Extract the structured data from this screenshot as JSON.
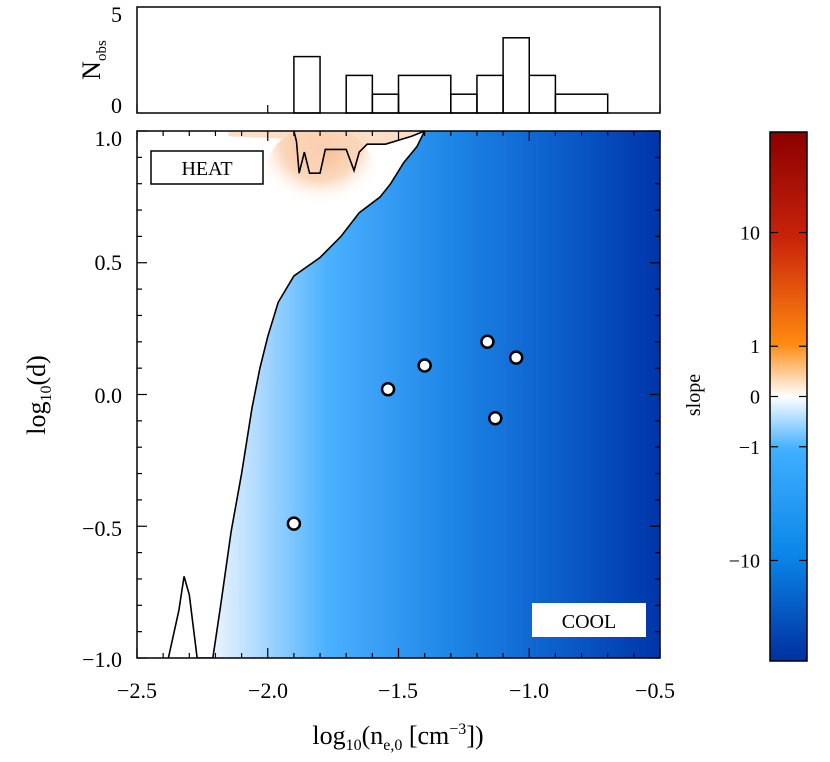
{
  "chart_data": [
    {
      "type": "histogram",
      "ylabel_main": "N",
      "ylabel_sub": "obs",
      "x_range": [
        -2.5,
        -0.5
      ],
      "y_range": [
        0,
        5
      ],
      "y_ticks": [
        "0",
        "5"
      ],
      "bins": [
        {
          "x0": -1.9,
          "x1": -1.8,
          "count": 3
        },
        {
          "x0": -1.7,
          "x1": -1.6,
          "count": 2
        },
        {
          "x0": -1.6,
          "x1": -1.5,
          "count": 1
        },
        {
          "x0": -1.5,
          "x1": -1.3,
          "count": 2
        },
        {
          "x0": -1.3,
          "x1": -1.2,
          "count": 1
        },
        {
          "x0": -1.2,
          "x1": -1.1,
          "count": 2
        },
        {
          "x0": -1.1,
          "x1": -1.0,
          "count": 4
        },
        {
          "x0": -1.0,
          "x1": -0.9,
          "count": 2
        },
        {
          "x0": -0.9,
          "x1": -0.7,
          "count": 1
        }
      ]
    },
    {
      "type": "heatmap",
      "xlabel_main": "log",
      "xlabel_sub": "10",
      "xlabel_rest_open": "(n",
      "xlabel_sub2": "e,0",
      "xlabel_unit": " [cm",
      "xlabel_sup": "−3",
      "xlabel_close": "])",
      "ylabel_main": "log",
      "ylabel_sub": "10",
      "ylabel_rest": "(d)",
      "xlim": [
        -2.5,
        -0.5
      ],
      "ylim": [
        -1.0,
        1.0
      ],
      "x_ticks": [
        "−2.5",
        "−2.0",
        "−1.5",
        "−1.0",
        "−0.5"
      ],
      "y_ticks": [
        "1.0",
        "0.5",
        "0.0",
        "−0.5",
        "−1.0"
      ],
      "annotations": [
        "HEAT",
        "COOL"
      ],
      "points": [
        {
          "x": -1.9,
          "y": -0.49
        },
        {
          "x": -1.54,
          "y": 0.02
        },
        {
          "x": -1.4,
          "y": 0.11
        },
        {
          "x": -1.16,
          "y": 0.2
        },
        {
          "x": -1.13,
          "y": -0.09
        },
        {
          "x": -1.05,
          "y": 0.14
        }
      ],
      "zero_contour": [
        [
          -2.38,
          -1.0
        ],
        [
          -2.34,
          -0.82
        ],
        [
          -2.32,
          -0.69
        ],
        [
          -2.3,
          -0.76
        ],
        [
          -2.27,
          -1.0
        ],
        [
          -2.21,
          -1.0
        ],
        [
          -2.18,
          -0.8
        ],
        [
          -2.14,
          -0.52
        ],
        [
          -2.1,
          -0.3
        ],
        [
          -2.06,
          -0.05
        ],
        [
          -2.03,
          0.1
        ],
        [
          -2.0,
          0.22
        ],
        [
          -1.96,
          0.35
        ],
        [
          -1.9,
          0.45
        ],
        [
          -1.8,
          0.52
        ],
        [
          -1.72,
          0.6
        ],
        [
          -1.65,
          0.69
        ],
        [
          -1.57,
          0.75
        ],
        [
          -1.53,
          0.8
        ],
        [
          -1.48,
          0.88
        ],
        [
          -1.43,
          0.94
        ],
        [
          -1.4,
          1.0
        ]
      ],
      "heat_contour": [
        [
          -1.9,
          1.0
        ],
        [
          -1.89,
          0.96
        ],
        [
          -1.88,
          0.84
        ],
        [
          -1.86,
          0.92
        ],
        [
          -1.84,
          0.84
        ],
        [
          -1.8,
          0.84
        ],
        [
          -1.78,
          0.93
        ],
        [
          -1.74,
          0.93
        ],
        [
          -1.7,
          0.93
        ],
        [
          -1.67,
          0.85
        ],
        [
          -1.65,
          0.92
        ],
        [
          -1.62,
          0.95
        ],
        [
          -1.55,
          0.95
        ],
        [
          -1.45,
          0.98
        ],
        [
          -1.4,
          1.0
        ]
      ]
    },
    {
      "type": "colorbar",
      "label": "slope",
      "tick_labels": [
        "10",
        "1",
        "0",
        "−1",
        "−10"
      ],
      "tick_fractions": [
        0.19,
        0.405,
        0.5,
        0.595,
        0.81
      ],
      "colors": [
        "#8b0000",
        "#c8230a",
        "#ff8000",
        "#ffffff",
        "#40b0ff",
        "#0a8ee8",
        "#0030a0"
      ]
    }
  ]
}
